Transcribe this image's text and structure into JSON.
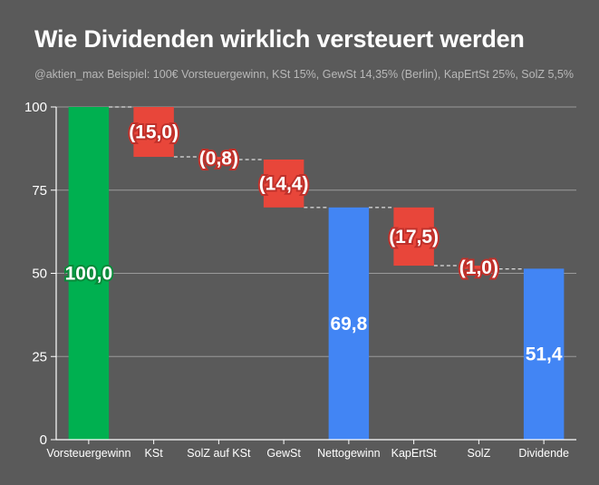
{
  "title": "Wie Dividenden wirklich versteuert werden",
  "subtitle": "@aktien_max Beispiel: 100€ Vorsteuergewinn, KSt 15%, GewSt 14,35% (Berlin), KapErtSt 25%, SolZ 5,5%",
  "colors": {
    "background": "#5a5a5a",
    "gridline": "#9a9a9a",
    "axis": "#ffffff",
    "start": "#00b050",
    "decrease": "#e8463a",
    "subtotal": "#4285f4",
    "connector": "#ffffff"
  },
  "chart_data": {
    "type": "bar",
    "subtype": "waterfall",
    "categories": [
      "Vorsteuergewinn",
      "KSt",
      "SolZ auf KSt",
      "GewSt",
      "Nettogewinn",
      "KapErtSt",
      "SolZ",
      "Dividende"
    ],
    "values": [
      100.0,
      -15.0,
      -0.8,
      -14.4,
      69.8,
      -17.5,
      -1.0,
      51.4
    ],
    "kinds": [
      "start",
      "decrease",
      "decrease",
      "decrease",
      "total",
      "decrease",
      "decrease",
      "total"
    ],
    "data_labels": [
      "100,0",
      "(15,0)",
      "(0,8)",
      "(14,4)",
      "69,8",
      "(17,5)",
      "(1,0)",
      "51,4"
    ],
    "yticks": [
      "0",
      "25",
      "50",
      "75",
      "100"
    ],
    "ylim": [
      0,
      100
    ],
    "grid": true,
    "legend": "none"
  }
}
